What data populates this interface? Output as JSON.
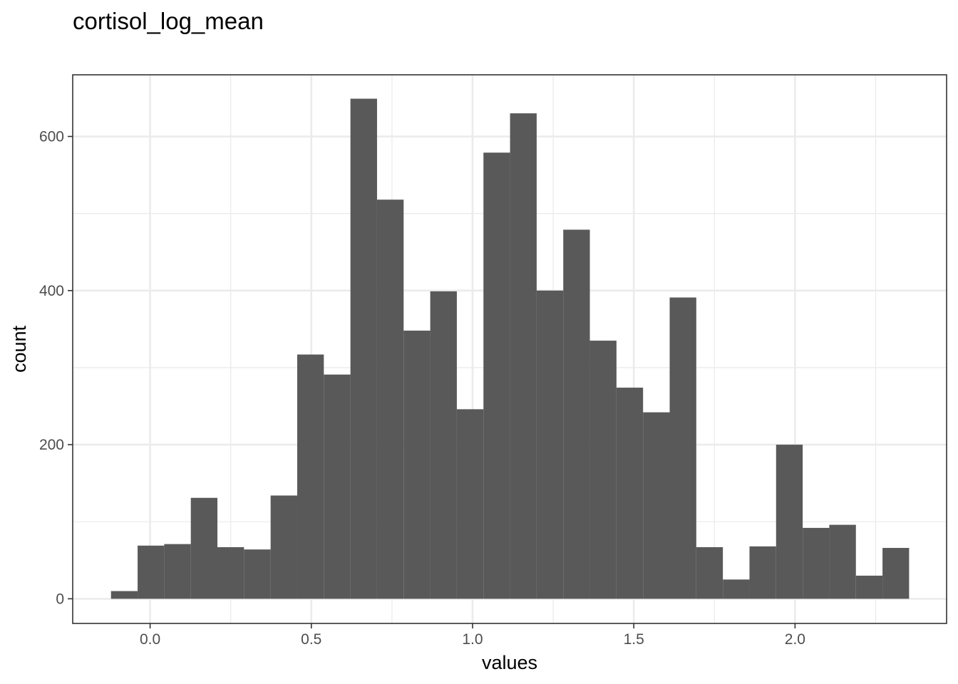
{
  "chart_data": {
    "type": "bar",
    "title": "cortisol_log_mean",
    "xlabel": "values",
    "ylabel": "count",
    "bin_width": 0.0825,
    "bins": [
      {
        "x": -0.08,
        "count": 10
      },
      {
        "x": 0.0025,
        "count": 69
      },
      {
        "x": 0.085,
        "count": 71
      },
      {
        "x": 0.1675,
        "count": 131
      },
      {
        "x": 0.25,
        "count": 67
      },
      {
        "x": 0.3325,
        "count": 64
      },
      {
        "x": 0.415,
        "count": 134
      },
      {
        "x": 0.4975,
        "count": 317
      },
      {
        "x": 0.58,
        "count": 291
      },
      {
        "x": 0.6625,
        "count": 649
      },
      {
        "x": 0.745,
        "count": 518
      },
      {
        "x": 0.8275,
        "count": 348
      },
      {
        "x": 0.91,
        "count": 399
      },
      {
        "x": 0.9925,
        "count": 246
      },
      {
        "x": 1.075,
        "count": 579
      },
      {
        "x": 1.1575,
        "count": 630
      },
      {
        "x": 1.24,
        "count": 400
      },
      {
        "x": 1.3225,
        "count": 479
      },
      {
        "x": 1.405,
        "count": 335
      },
      {
        "x": 1.4875,
        "count": 274
      },
      {
        "x": 1.57,
        "count": 242
      },
      {
        "x": 1.6525,
        "count": 391
      },
      {
        "x": 1.735,
        "count": 67
      },
      {
        "x": 1.8175,
        "count": 25
      },
      {
        "x": 1.9,
        "count": 68
      },
      {
        "x": 1.9825,
        "count": 200
      },
      {
        "x": 2.065,
        "count": 92
      },
      {
        "x": 2.1475,
        "count": 96
      },
      {
        "x": 2.23,
        "count": 30
      },
      {
        "x": 2.3125,
        "count": 66
      }
    ],
    "x_ticks": [
      "0.0",
      "0.5",
      "1.0",
      "1.5",
      "2.0"
    ],
    "y_ticks": [
      "0",
      "200",
      "400",
      "600"
    ],
    "xlim": [
      -0.24,
      2.47
    ],
    "ylim": [
      -32,
      680
    ],
    "grid": true,
    "bar_color": "#595959",
    "theme": "bw"
  }
}
